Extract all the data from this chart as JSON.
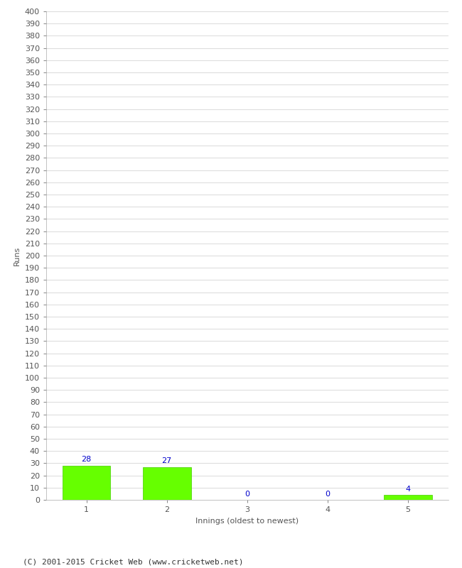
{
  "innings": [
    1,
    2,
    3,
    4,
    5
  ],
  "runs": [
    28,
    27,
    0,
    0,
    4
  ],
  "bar_color": "#66ff00",
  "bar_edge_color": "#44cc00",
  "label_color": "#0000cc",
  "ylabel": "Runs",
  "xlabel": "Innings (oldest to newest)",
  "ylim": [
    0,
    400
  ],
  "background_color": "#ffffff",
  "grid_color": "#cccccc",
  "footer": "(C) 2001-2015 Cricket Web (www.cricketweb.net)",
  "label_fontsize": 8,
  "axis_fontsize": 8,
  "footer_fontsize": 8,
  "tick_color": "#555555",
  "spine_color": "#aaaaaa"
}
